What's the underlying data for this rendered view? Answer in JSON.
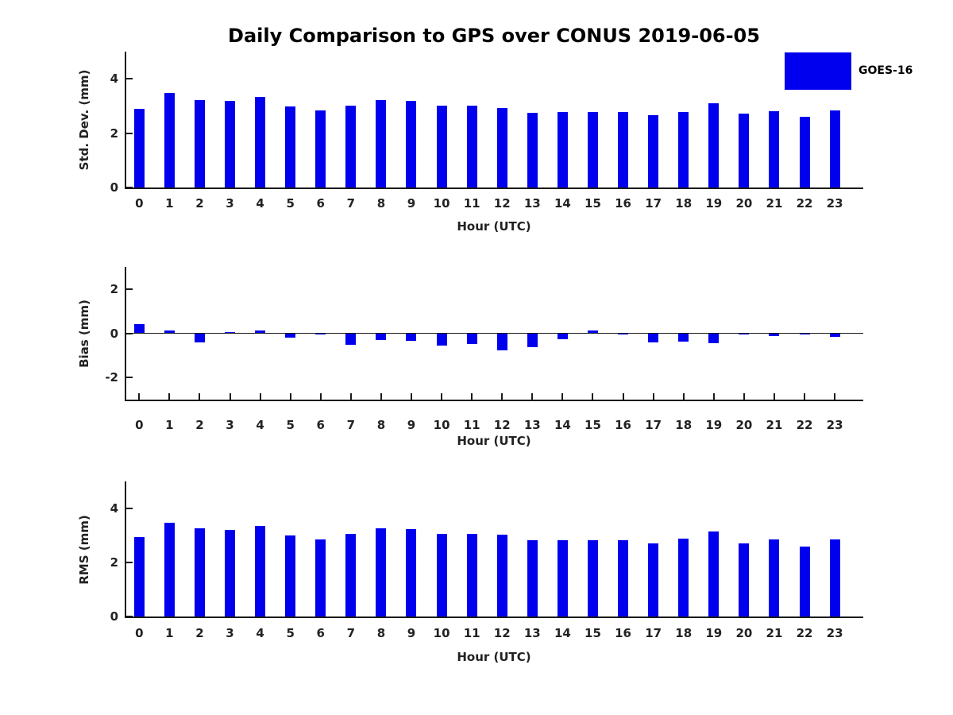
{
  "title": "Daily Comparison to GPS over CONUS 2019-06-05",
  "legend": {
    "label": "GOES-16",
    "color": "#0000EE",
    "position": "top-right"
  },
  "chart_data": [
    {
      "type": "bar",
      "series_name": "GOES-16",
      "bar_color": "#0000EE",
      "ylabel": "Std. Dev. (mm)",
      "xlabel": "Hour (UTC)",
      "categories": [
        "0",
        "1",
        "2",
        "3",
        "4",
        "5",
        "6",
        "7",
        "8",
        "9",
        "10",
        "11",
        "12",
        "13",
        "14",
        "15",
        "16",
        "17",
        "18",
        "19",
        "20",
        "21",
        "22",
        "23"
      ],
      "values": [
        2.9,
        3.47,
        3.21,
        3.18,
        3.32,
        2.97,
        2.85,
        3.0,
        3.22,
        3.19,
        3.0,
        3.0,
        2.92,
        2.74,
        2.79,
        2.77,
        2.79,
        2.65,
        2.79,
        3.11,
        2.71,
        2.82,
        2.6,
        2.84
      ],
      "ylim": [
        0,
        5
      ],
      "yticks": [
        0,
        2,
        4
      ],
      "grid": false
    },
    {
      "type": "bar",
      "series_name": "GOES-16",
      "bar_color": "#0000EE",
      "ylabel": "Bias (mm)",
      "xlabel": "Hour (UTC)",
      "categories": [
        "0",
        "1",
        "2",
        "3",
        "4",
        "5",
        "6",
        "7",
        "8",
        "9",
        "10",
        "11",
        "12",
        "13",
        "14",
        "15",
        "16",
        "17",
        "18",
        "19",
        "20",
        "21",
        "22",
        "23"
      ],
      "values": [
        0.4,
        0.14,
        -0.4,
        0.05,
        0.12,
        -0.19,
        -0.07,
        -0.52,
        -0.3,
        -0.34,
        -0.56,
        -0.49,
        -0.77,
        -0.63,
        -0.26,
        0.12,
        -0.02,
        -0.41,
        -0.38,
        -0.46,
        -0.05,
        -0.12,
        -0.04,
        -0.17
      ],
      "ylim": [
        -3,
        3
      ],
      "yticks": [
        -2,
        0,
        2
      ],
      "grid": false
    },
    {
      "type": "bar",
      "series_name": "GOES-16",
      "bar_color": "#0000EE",
      "ylabel": "RMS (mm)",
      "xlabel": "Hour (UTC)",
      "categories": [
        "0",
        "1",
        "2",
        "3",
        "4",
        "5",
        "6",
        "7",
        "8",
        "9",
        "10",
        "11",
        "12",
        "13",
        "14",
        "15",
        "16",
        "17",
        "18",
        "19",
        "20",
        "21",
        "22",
        "23"
      ],
      "values": [
        2.93,
        3.47,
        3.26,
        3.21,
        3.34,
        3.0,
        2.86,
        3.05,
        3.26,
        3.24,
        3.05,
        3.05,
        3.02,
        2.82,
        2.83,
        2.83,
        2.83,
        2.7,
        2.87,
        3.15,
        2.72,
        2.86,
        2.6,
        2.86
      ],
      "ylim": [
        0,
        5
      ],
      "yticks": [
        0,
        2,
        4
      ],
      "grid": false
    }
  ]
}
